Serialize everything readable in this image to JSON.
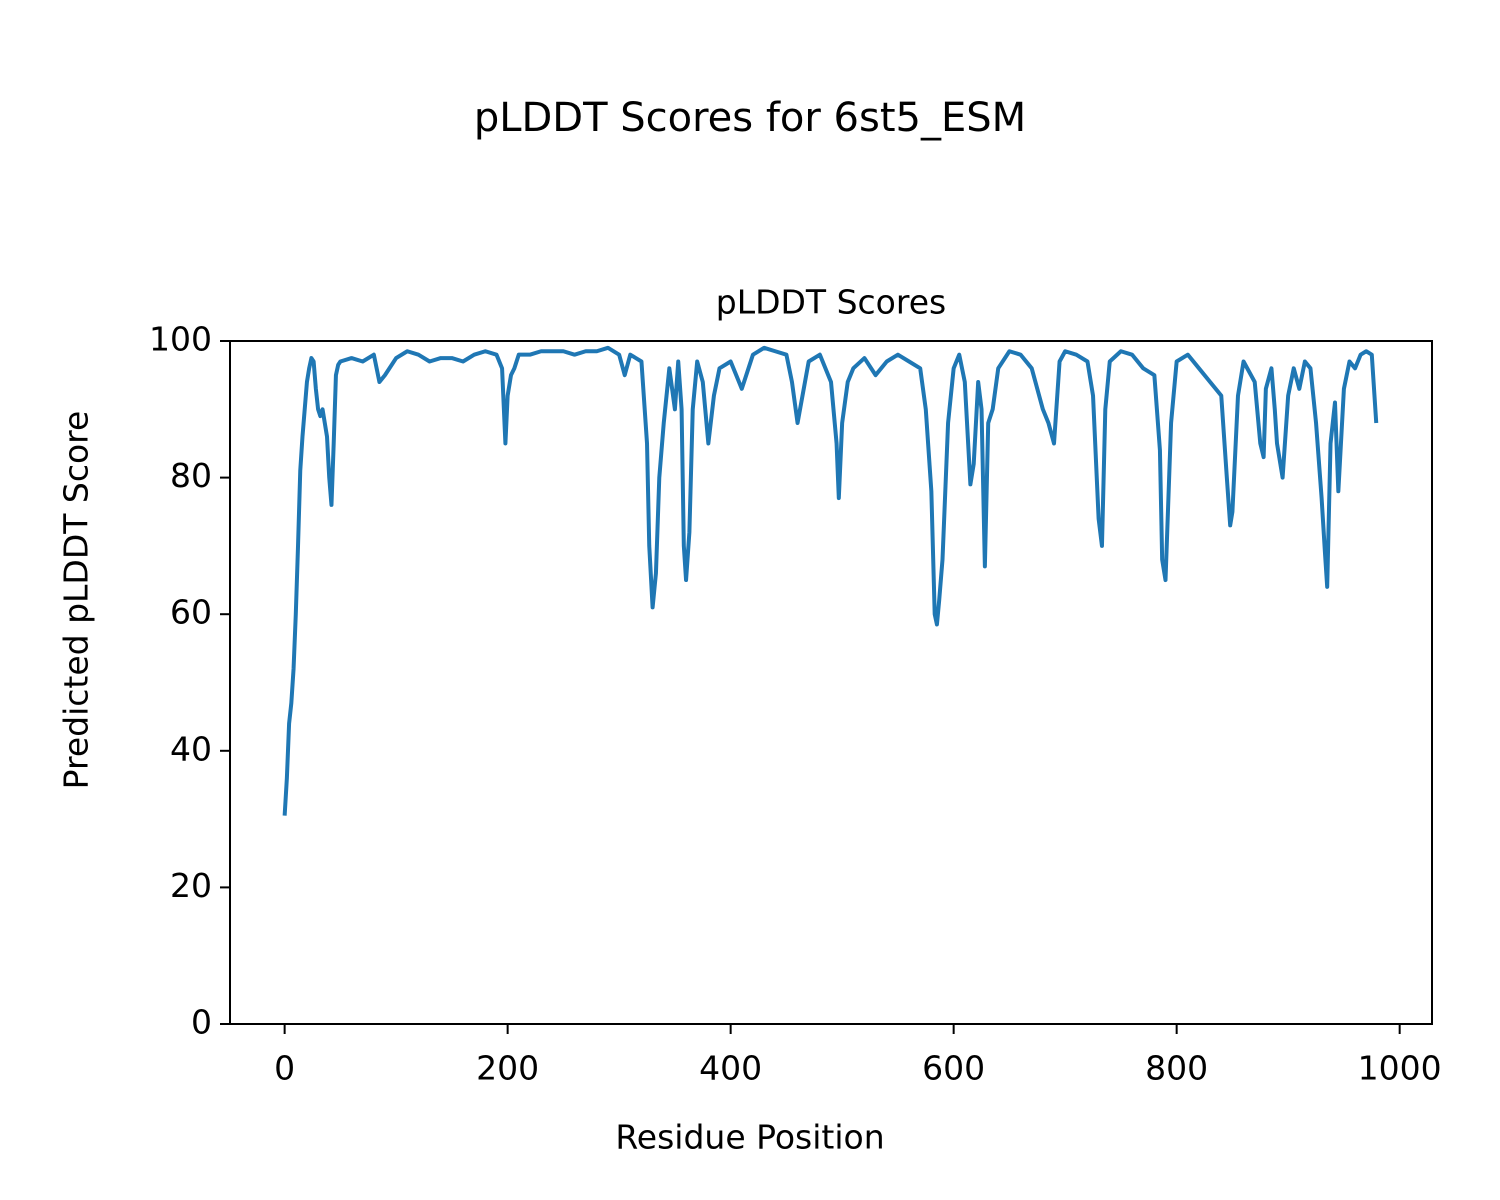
{
  "chart_data": {
    "type": "line",
    "suptitle": "pLDDT Scores for 6st5_ESM",
    "title": "pLDDT Scores",
    "xlabel": "Residue Position",
    "ylabel": "Predicted pLDDT Score",
    "x": [
      0,
      2,
      4,
      6,
      8,
      10,
      12,
      14,
      16,
      18,
      20,
      22,
      24,
      26,
      28,
      30,
      32,
      34,
      36,
      38,
      40,
      42,
      44,
      46,
      48,
      50,
      60,
      70,
      80,
      85,
      90,
      100,
      110,
      120,
      130,
      140,
      150,
      160,
      170,
      180,
      190,
      195,
      198,
      200,
      203,
      206,
      210,
      220,
      230,
      240,
      250,
      260,
      270,
      280,
      290,
      300,
      305,
      310,
      320,
      325,
      327,
      330,
      333,
      336,
      340,
      345,
      350,
      353,
      356,
      358,
      360,
      363,
      366,
      370,
      375,
      380,
      385,
      390,
      400,
      410,
      420,
      430,
      440,
      450,
      455,
      460,
      470,
      480,
      490,
      495,
      497,
      500,
      505,
      510,
      520,
      530,
      540,
      550,
      560,
      570,
      575,
      580,
      583,
      585,
      587,
      590,
      595,
      600,
      605,
      610,
      615,
      618,
      622,
      625,
      628,
      631,
      635,
      640,
      650,
      660,
      670,
      680,
      685,
      690,
      695,
      700,
      710,
      720,
      725,
      730,
      733,
      736,
      740,
      750,
      760,
      770,
      780,
      785,
      787,
      790,
      795,
      800,
      810,
      820,
      830,
      840,
      845,
      848,
      850,
      855,
      860,
      870,
      875,
      878,
      880,
      885,
      888,
      890,
      895,
      900,
      905,
      910,
      915,
      920,
      925,
      930,
      933,
      935,
      938,
      942,
      945,
      950,
      955,
      960,
      965,
      970,
      975,
      979
    ],
    "series": [
      {
        "name": "pLDDT",
        "color": "#1f77b4",
        "values": [
          30.5,
          36,
          44,
          47,
          52,
          60,
          70,
          81,
          86,
          90,
          94,
          96,
          97.5,
          97,
          93,
          90,
          89,
          90,
          88,
          86,
          80,
          76,
          85,
          95,
          96.5,
          97,
          97.5,
          97,
          98,
          94,
          95,
          97.5,
          98.5,
          98,
          97,
          97.5,
          97.5,
          97,
          98,
          98.5,
          98,
          96,
          85,
          92,
          95,
          96,
          98,
          98,
          98.5,
          98.5,
          98.5,
          98,
          98.5,
          98.5,
          99,
          98,
          95,
          98,
          97,
          85,
          70,
          61,
          66,
          80,
          88,
          96,
          90,
          97,
          90,
          70,
          65,
          72,
          90,
          97,
          94,
          85,
          92,
          96,
          97,
          93,
          98,
          99,
          98.5,
          98,
          94,
          88,
          97,
          98,
          94,
          85,
          77,
          88,
          94,
          96,
          97.5,
          95,
          97,
          98,
          97,
          96,
          90,
          78,
          60,
          58.5,
          62,
          68,
          88,
          96,
          98,
          94,
          79,
          82,
          94,
          90,
          67,
          88,
          90,
          96,
          98.5,
          98,
          96,
          90,
          88,
          85,
          97,
          98.5,
          98,
          97,
          92,
          74,
          70,
          90,
          97,
          98.5,
          98,
          96,
          95,
          84,
          68,
          65,
          88,
          97,
          98,
          96,
          94,
          92,
          80,
          73,
          75,
          92,
          97,
          94,
          85,
          83,
          93,
          96,
          90,
          85,
          80,
          92,
          96,
          93,
          97,
          96,
          88,
          77,
          69,
          64,
          85,
          91,
          78,
          93,
          97,
          96,
          98,
          98.5,
          98,
          88
        ]
      }
    ],
    "xlim": [
      -49,
      1029
    ],
    "ylim": [
      0,
      100
    ],
    "xticks": [
      0,
      200,
      400,
      600,
      800,
      1000
    ],
    "yticks": [
      0,
      20,
      40,
      60,
      80,
      100
    ]
  }
}
